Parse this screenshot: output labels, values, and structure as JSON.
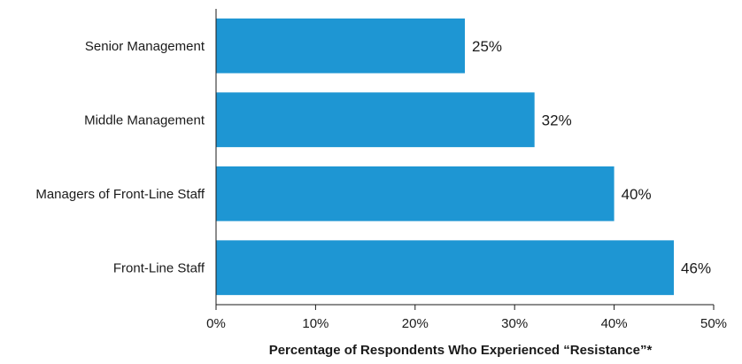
{
  "chart_data": {
    "type": "bar",
    "orientation": "horizontal",
    "categories": [
      "Senior Management",
      "Middle Management",
      "Managers of Front-Line Staff",
      "Front-Line Staff"
    ],
    "values": [
      25,
      32,
      40,
      46
    ],
    "value_labels": [
      "25%",
      "32%",
      "40%",
      "46%"
    ],
    "xlabel": "Percentage of Respondents Who Experienced “Resistance”*",
    "ylabel": "",
    "xlim": [
      0,
      50
    ],
    "x_ticks": [
      0,
      10,
      20,
      30,
      40,
      50
    ],
    "x_tick_labels": [
      "0%",
      "10%",
      "20%",
      "30%",
      "40%",
      "50%"
    ],
    "bar_color": "#1e96d3",
    "grid": false,
    "legend": "none"
  }
}
